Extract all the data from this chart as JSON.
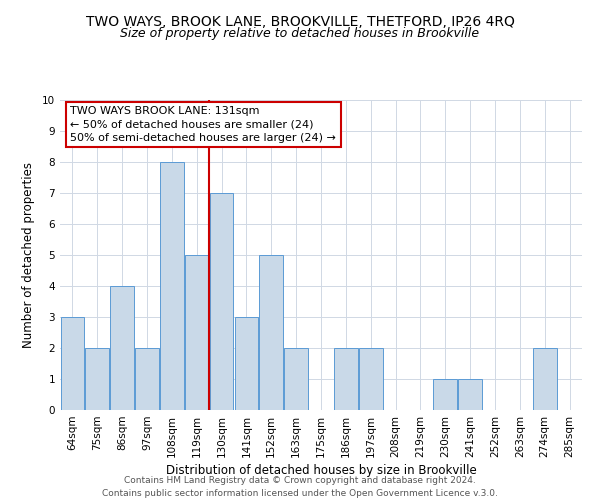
{
  "title": "TWO WAYS, BROOK LANE, BROOKVILLE, THETFORD, IP26 4RQ",
  "subtitle": "Size of property relative to detached houses in Brookville",
  "xlabel": "Distribution of detached houses by size in Brookville",
  "ylabel": "Number of detached properties",
  "categories": [
    "64sqm",
    "75sqm",
    "86sqm",
    "97sqm",
    "108sqm",
    "119sqm",
    "130sqm",
    "141sqm",
    "152sqm",
    "163sqm",
    "175sqm",
    "186sqm",
    "197sqm",
    "208sqm",
    "219sqm",
    "230sqm",
    "241sqm",
    "252sqm",
    "263sqm",
    "274sqm",
    "285sqm"
  ],
  "values": [
    3,
    2,
    4,
    2,
    8,
    5,
    7,
    3,
    5,
    2,
    0,
    2,
    2,
    0,
    0,
    1,
    1,
    0,
    0,
    2,
    0
  ],
  "bar_color": "#c9d9e8",
  "bar_edge_color": "#5b9bd5",
  "vline_index": 6,
  "vline_color": "#cc0000",
  "ylim": [
    0,
    10
  ],
  "yticks": [
    0,
    1,
    2,
    3,
    4,
    5,
    6,
    7,
    8,
    9,
    10
  ],
  "annotation_title": "TWO WAYS BROOK LANE: 131sqm",
  "annotation_line1": "← 50% of detached houses are smaller (24)",
  "annotation_line2": "50% of semi-detached houses are larger (24) →",
  "annotation_box_color": "#ffffff",
  "annotation_box_edge": "#cc0000",
  "footer_line1": "Contains HM Land Registry data © Crown copyright and database right 2024.",
  "footer_line2": "Contains public sector information licensed under the Open Government Licence v.3.0.",
  "background_color": "#ffffff",
  "grid_color": "#d0d8e4",
  "title_fontsize": 10,
  "subtitle_fontsize": 9,
  "axis_label_fontsize": 8.5,
  "tick_fontsize": 7.5,
  "annotation_fontsize": 8,
  "footer_fontsize": 6.5
}
